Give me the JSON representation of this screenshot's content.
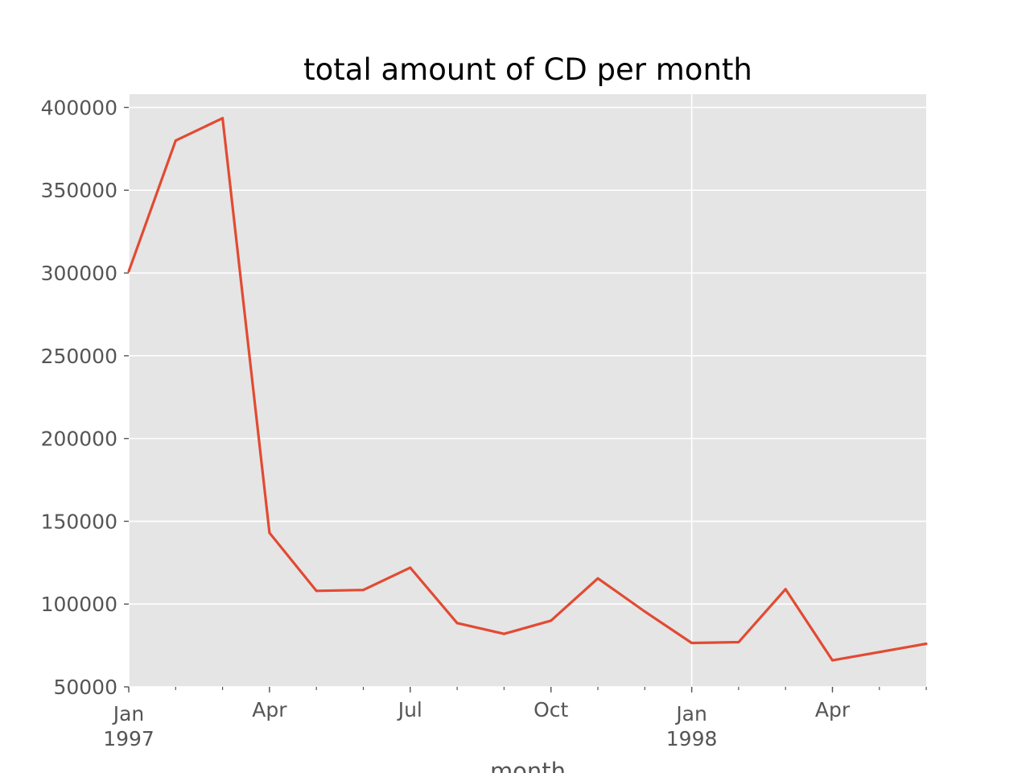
{
  "chart_data": {
    "type": "line",
    "title": "total amount of CD per month",
    "xlabel": "month",
    "ylabel": "",
    "x": [
      "1997-01",
      "1997-02",
      "1997-03",
      "1997-04",
      "1997-05",
      "1997-06",
      "1997-07",
      "1997-08",
      "1997-09",
      "1997-10",
      "1997-11",
      "1997-12",
      "1998-01",
      "1998-02",
      "1998-03",
      "1998-04",
      "1998-05",
      "1998-06"
    ],
    "series": [
      {
        "values": [
          301000,
          380000,
          393500,
          143000,
          108000,
          108500,
          122000,
          88500,
          82000,
          90000,
          115500,
          95500,
          76500,
          77000,
          109000,
          66000,
          71000,
          76000
        ]
      }
    ],
    "ylim": [
      50000,
      408000
    ],
    "yticks": [
      "400000",
      "350000",
      "300000",
      "250000",
      "200000",
      "150000",
      "100000",
      "50000"
    ],
    "xticks": [
      {
        "month": "1997-01",
        "line1": "Jan",
        "line2": "1997"
      },
      {
        "month": "1997-04",
        "line1": "Apr",
        "line2": ""
      },
      {
        "month": "1997-07",
        "line1": "Jul",
        "line2": ""
      },
      {
        "month": "1997-10",
        "line1": "Oct",
        "line2": ""
      },
      {
        "month": "1998-01",
        "line1": "Jan",
        "line2": "1998"
      },
      {
        "month": "1998-04",
        "line1": "Apr",
        "line2": ""
      }
    ],
    "grid": true,
    "colors": {
      "line": "#e24a33",
      "plot_background": "#e5e5e5",
      "grid": "#ffffff",
      "tick_text": "#555555",
      "title_text": "#000000"
    }
  }
}
